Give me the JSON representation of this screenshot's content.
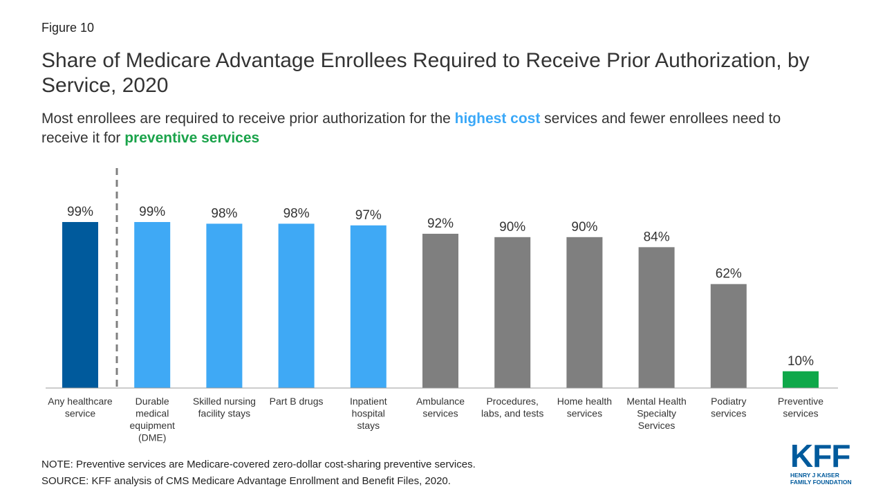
{
  "figure_label": "Figure 10",
  "title": "Share of Medicare Advantage Enrollees Required to Receive Prior Authorization, by Service, 2020",
  "subtitle": {
    "part1": "Most enrollees are required to receive prior authorization for the ",
    "highlight1": "highest cost",
    "part2": " services and fewer enrollees need to receive it for ",
    "highlight2": "preventive services"
  },
  "colors": {
    "dark_blue": "#005a9c",
    "light_blue": "#3fa9f5",
    "gray": "#7f7f7f",
    "green": "#0fa84a",
    "highlight_blue": "#3aa8f8",
    "highlight_green": "#1aa34a",
    "divider": "#7f7f7f"
  },
  "chart_data": {
    "type": "bar",
    "title": "Share of Medicare Advantage Enrollees Required to Receive Prior Authorization, by Service, 2020",
    "xlabel": "",
    "ylabel": "",
    "ylim": [
      0,
      100
    ],
    "grid": false,
    "categories": [
      {
        "label": [
          "Any healthcare",
          "service"
        ],
        "value": 99,
        "display": "99%",
        "color_key": "dark_blue"
      },
      {
        "label": [
          "Durable",
          "medical",
          "equipment",
          "(DME)"
        ],
        "value": 99,
        "display": "99%",
        "color_key": "light_blue"
      },
      {
        "label": [
          "Skilled nursing",
          "facility stays"
        ],
        "value": 98,
        "display": "98%",
        "color_key": "light_blue"
      },
      {
        "label": [
          "Part B drugs"
        ],
        "value": 98,
        "display": "98%",
        "color_key": "light_blue"
      },
      {
        "label": [
          "Inpatient",
          "hospital",
          "stays"
        ],
        "value": 97,
        "display": "97%",
        "color_key": "light_blue"
      },
      {
        "label": [
          "Ambulance",
          "services"
        ],
        "value": 92,
        "display": "92%",
        "color_key": "gray"
      },
      {
        "label": [
          "Procedures,",
          "labs, and tests"
        ],
        "value": 90,
        "display": "90%",
        "color_key": "gray"
      },
      {
        "label": [
          "Home health",
          "services"
        ],
        "value": 90,
        "display": "90%",
        "color_key": "gray"
      },
      {
        "label": [
          "Mental Health",
          "Specialty",
          "Services"
        ],
        "value": 84,
        "display": "84%",
        "color_key": "gray"
      },
      {
        "label": [
          "Podiatry",
          "services"
        ],
        "value": 62,
        "display": "62%",
        "color_key": "gray"
      },
      {
        "label": [
          "Preventive",
          "services"
        ],
        "value": 10,
        "display": "10%",
        "color_key": "green"
      }
    ]
  },
  "note": "NOTE: Preventive services are Medicare-covered zero-dollar cost-sharing preventive services.",
  "source": "SOURCE: KFF analysis of CMS Medicare Advantage Enrollment and Benefit Files, 2020.",
  "logo": {
    "letters": [
      "K",
      "F",
      "F"
    ],
    "line1": "HENRY J KAISER",
    "line2": "FAMILY FOUNDATION"
  }
}
